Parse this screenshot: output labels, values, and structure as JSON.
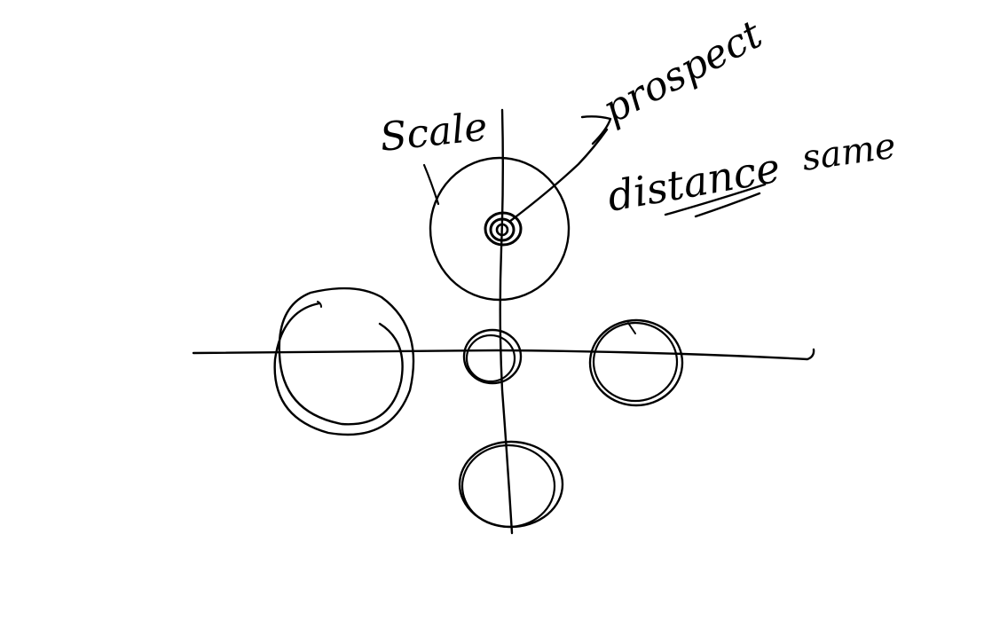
{
  "canvas": {
    "background": "#ffffff",
    "ink_color": "#000000"
  },
  "annotations": {
    "scale_label": "Scale",
    "prospect_label": "prospect",
    "distance_label": "distance",
    "same_label": "same"
  },
  "shapes": {
    "center_target": "target-circle-with-center-dot",
    "left_circle": "large-circle-on-horizontal-axis",
    "origin_circle": "small-circle-at-origin",
    "right_circle": "medium-circle-on-horizontal-axis",
    "bottom_circle": "medium-circle-on-vertical-axis",
    "arrow": "arrow-from-center-to-prospect"
  }
}
